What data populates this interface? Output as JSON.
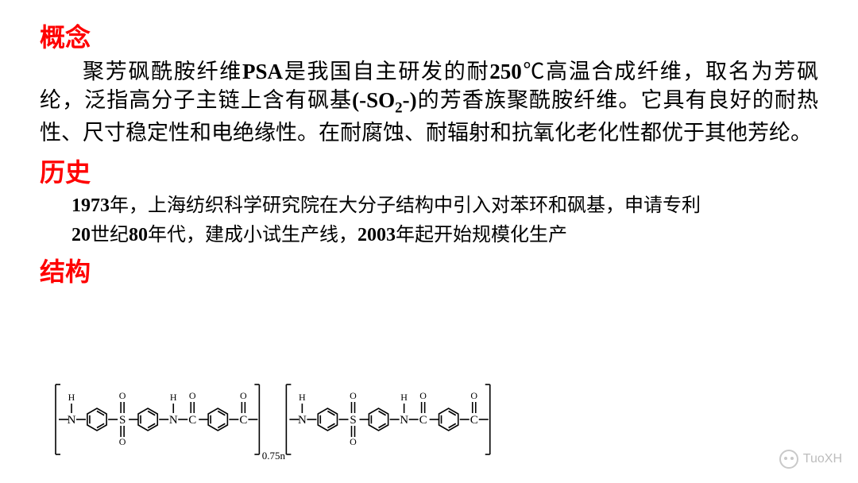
{
  "headings": {
    "concept": "概念",
    "history": "历史",
    "structure": "结构"
  },
  "concept_para_html": "聚芳砜酰胺纤维<span class='bold'>PSA</span>是我国自主研发的耐<span class='bold'>250</span>℃高温合成纤维，取名为芳砜纶，泛指高分子主链上含有砜基<span class='bold'>(-SO<sub>2</sub>-)</span>的芳香族聚酰胺纤维。它具有良好的耐热性、尺寸稳定性和电绝缘性。在耐腐蚀、耐辐射和抗氧化老化性都优于其他芳纶。",
  "history_lines": [
    "<span class='bold'>1973</span>年，上海纺织科学研究院在大分子结构中引入对苯环和砜基，申请专利",
    "<span class='bold'>20</span>世纪<span class='bold'>80</span>年代，建成小试生产线，<span class='bold'>2003</span>年起开始规模化生产"
  ],
  "chem": {
    "subscript": "0.75n",
    "labels": {
      "H": "H",
      "O": "O",
      "N": "N",
      "S": "S",
      "C": "C"
    },
    "stroke": "#000000",
    "stroke_width": 1.6
  },
  "watermark": "TuoXH"
}
